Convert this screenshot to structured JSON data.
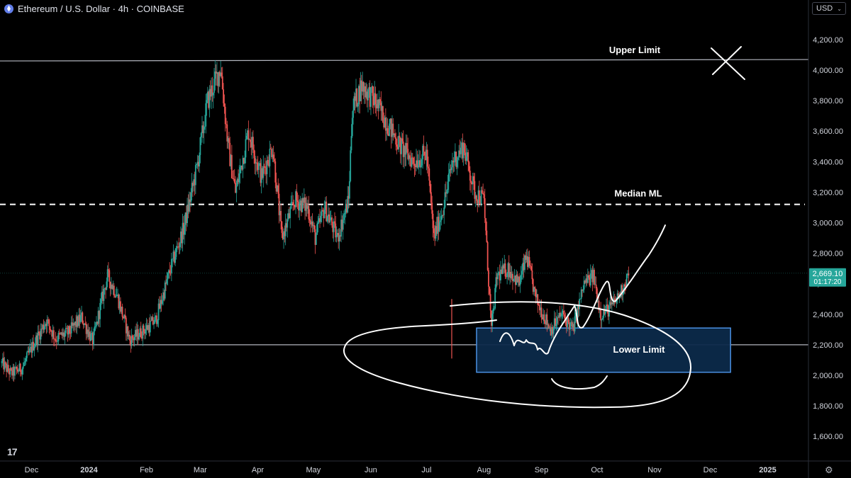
{
  "header": {
    "title": "Ethereum / U.S. Dollar · 4h · COINBASE",
    "logo_icon": "ethereum-logo-icon"
  },
  "currency_selector": {
    "value": "USD"
  },
  "tradingview_logo": "17",
  "chart_data": {
    "type": "candlestick",
    "title": "Ethereum / U.S. Dollar · 4h · COINBASE",
    "ylim": [
      1500,
      4300
    ],
    "y_ticks": [
      {
        "v": 1600,
        "label": "1,600.00"
      },
      {
        "v": 1800,
        "label": "1,800.00"
      },
      {
        "v": 2000,
        "label": "2,000.00"
      },
      {
        "v": 2200,
        "label": "2,200.00"
      },
      {
        "v": 2400,
        "label": "2,400.00"
      },
      {
        "v": 2600,
        "label": "2,600.00"
      },
      {
        "v": 2800,
        "label": "2,800.00"
      },
      {
        "v": 3000,
        "label": "3,000.00"
      },
      {
        "v": 3200,
        "label": "3,200.00"
      },
      {
        "v": 3400,
        "label": "3,400.00"
      },
      {
        "v": 3600,
        "label": "3,600.00"
      },
      {
        "v": 3800,
        "label": "3,800.00"
      },
      {
        "v": 4000,
        "label": "4,000.00"
      },
      {
        "v": 4200,
        "label": "4,200.00"
      }
    ],
    "x_ticks": [
      {
        "date": "2023-12-01",
        "label": "Dec"
      },
      {
        "date": "2024-01-01",
        "label": "2024"
      },
      {
        "date": "2024-02-01",
        "label": "Feb"
      },
      {
        "date": "2024-03-01",
        "label": "Mar"
      },
      {
        "date": "2024-04-01",
        "label": "Apr"
      },
      {
        "date": "2024-05-01",
        "label": "May"
      },
      {
        "date": "2024-06-01",
        "label": "Jun"
      },
      {
        "date": "2024-07-01",
        "label": "Jul"
      },
      {
        "date": "2024-08-01",
        "label": "Aug"
      },
      {
        "date": "2024-09-01",
        "label": "Sep"
      },
      {
        "date": "2024-10-01",
        "label": "Oct"
      },
      {
        "date": "2024-11-01",
        "label": "Nov"
      },
      {
        "date": "2024-12-01",
        "label": "Dec"
      },
      {
        "date": "2025-01-01",
        "label": "2025"
      }
    ],
    "x_range": [
      "2023-11-14",
      "2025-01-23"
    ],
    "price_path": [
      {
        "date": "2023-11-15",
        "price": 2080
      },
      {
        "date": "2023-11-20",
        "price": 2010
      },
      {
        "date": "2023-11-26",
        "price": 2050
      },
      {
        "date": "2023-12-02",
        "price": 2200
      },
      {
        "date": "2023-12-09",
        "price": 2360
      },
      {
        "date": "2023-12-14",
        "price": 2240
      },
      {
        "date": "2023-12-21",
        "price": 2280
      },
      {
        "date": "2023-12-28",
        "price": 2380
      },
      {
        "date": "2024-01-03",
        "price": 2220
      },
      {
        "date": "2024-01-08",
        "price": 2500
      },
      {
        "date": "2024-01-11",
        "price": 2650
      },
      {
        "date": "2024-01-16",
        "price": 2530
      },
      {
        "date": "2024-01-23",
        "price": 2230
      },
      {
        "date": "2024-01-30",
        "price": 2290
      },
      {
        "date": "2024-02-06",
        "price": 2360
      },
      {
        "date": "2024-02-14",
        "price": 2700
      },
      {
        "date": "2024-02-21",
        "price": 2960
      },
      {
        "date": "2024-02-28",
        "price": 3350
      },
      {
        "date": "2024-03-05",
        "price": 3800
      },
      {
        "date": "2024-03-12",
        "price": 4020
      },
      {
        "date": "2024-03-16",
        "price": 3500
      },
      {
        "date": "2024-03-20",
        "price": 3200
      },
      {
        "date": "2024-03-27",
        "price": 3600
      },
      {
        "date": "2024-04-03",
        "price": 3300
      },
      {
        "date": "2024-04-09",
        "price": 3500
      },
      {
        "date": "2024-04-14",
        "price": 2900
      },
      {
        "date": "2024-04-21",
        "price": 3150
      },
      {
        "date": "2024-04-28",
        "price": 3100
      },
      {
        "date": "2024-05-02",
        "price": 2900
      },
      {
        "date": "2024-05-07",
        "price": 3100
      },
      {
        "date": "2024-05-14",
        "price": 2900
      },
      {
        "date": "2024-05-20",
        "price": 3150
      },
      {
        "date": "2024-05-22",
        "price": 3750
      },
      {
        "date": "2024-05-27",
        "price": 3900
      },
      {
        "date": "2024-06-03",
        "price": 3800
      },
      {
        "date": "2024-06-10",
        "price": 3650
      },
      {
        "date": "2024-06-17",
        "price": 3500
      },
      {
        "date": "2024-06-24",
        "price": 3400
      },
      {
        "date": "2024-07-01",
        "price": 3450
      },
      {
        "date": "2024-07-05",
        "price": 2900
      },
      {
        "date": "2024-07-10",
        "price": 3100
      },
      {
        "date": "2024-07-15",
        "price": 3400
      },
      {
        "date": "2024-07-21",
        "price": 3500
      },
      {
        "date": "2024-07-27",
        "price": 3200
      },
      {
        "date": "2024-08-01",
        "price": 3150
      },
      {
        "date": "2024-08-05",
        "price": 2300
      },
      {
        "date": "2024-08-08",
        "price": 2650
      },
      {
        "date": "2024-08-14",
        "price": 2700
      },
      {
        "date": "2024-08-20",
        "price": 2600
      },
      {
        "date": "2024-08-24",
        "price": 2780
      },
      {
        "date": "2024-08-29",
        "price": 2500
      },
      {
        "date": "2024-09-06",
        "price": 2300
      },
      {
        "date": "2024-09-12",
        "price": 2400
      },
      {
        "date": "2024-09-18",
        "price": 2300
      },
      {
        "date": "2024-09-24",
        "price": 2600
      },
      {
        "date": "2024-09-29",
        "price": 2650
      },
      {
        "date": "2024-10-03",
        "price": 2400
      },
      {
        "date": "2024-10-09",
        "price": 2450
      },
      {
        "date": "2024-10-14",
        "price": 2550
      },
      {
        "date": "2024-10-18",
        "price": 2669
      }
    ],
    "current_price": {
      "label": "2,669.10",
      "countdown": "01:17:20",
      "value": 2669.1
    },
    "annotations": [
      {
        "label": "Upper Limit",
        "value": 4060,
        "style": "solid"
      },
      {
        "label": "Median ML",
        "value": 3120,
        "style": "dashed"
      },
      {
        "label": "Lower Limit",
        "value": 2200,
        "style": "solid"
      }
    ],
    "zone": {
      "from_date": "2024-07-28",
      "to_date": "2024-12-12",
      "low": 2020,
      "high": 2310
    },
    "colors": {
      "up": "#26a69a",
      "down": "#ef5350",
      "zone_fill": "#0c2a4a",
      "zone_border": "#2962ff",
      "price_tag": "#26a69a"
    },
    "grid": false
  }
}
